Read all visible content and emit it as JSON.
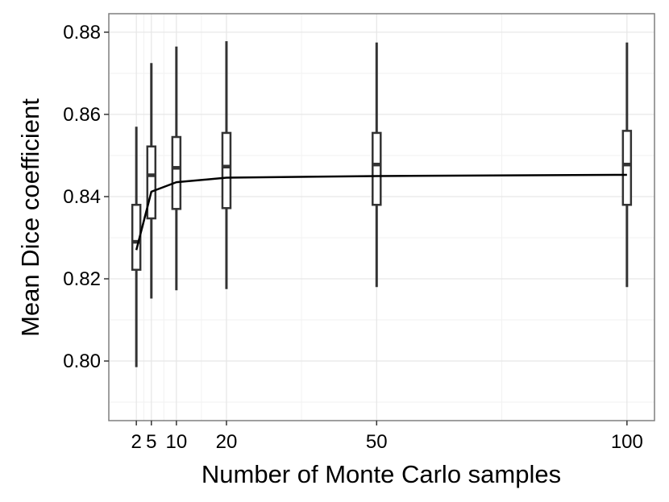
{
  "chart_data": {
    "type": "boxplot",
    "xlabel": "Number of Monte Carlo samples",
    "ylabel": "Mean Dice coefficient",
    "x_ticks": [
      2,
      5,
      10,
      20,
      50,
      100
    ],
    "x_tick_labels": [
      "2",
      "5",
      "10",
      "20",
      "50",
      "100"
    ],
    "y_ticks": [
      0.8,
      0.82,
      0.84,
      0.86,
      0.88
    ],
    "y_tick_labels": [
      "0.80",
      "0.82",
      "0.84",
      "0.86",
      "0.88"
    ],
    "xlim": [
      -3.5,
      105.5
    ],
    "ylim": [
      0.7855,
      0.8845
    ],
    "grid": true,
    "boxes": [
      {
        "x": 2,
        "whisker_low": 0.7985,
        "q1": 0.8222,
        "median": 0.829,
        "q3": 0.838,
        "whisker_high": 0.857
      },
      {
        "x": 5,
        "whisker_low": 0.8152,
        "q1": 0.8347,
        "median": 0.8452,
        "q3": 0.8522,
        "whisker_high": 0.8725
      },
      {
        "x": 10,
        "whisker_low": 0.8172,
        "q1": 0.837,
        "median": 0.847,
        "q3": 0.8545,
        "whisker_high": 0.8765
      },
      {
        "x": 20,
        "whisker_low": 0.8175,
        "q1": 0.8372,
        "median": 0.8473,
        "q3": 0.8555,
        "whisker_high": 0.8778
      },
      {
        "x": 50,
        "whisker_low": 0.818,
        "q1": 0.838,
        "median": 0.8478,
        "q3": 0.8555,
        "whisker_high": 0.8775
      },
      {
        "x": 100,
        "whisker_low": 0.818,
        "q1": 0.838,
        "median": 0.8478,
        "q3": 0.856,
        "whisker_high": 0.8775
      }
    ],
    "mean_line": {
      "x": [
        2,
        5,
        10,
        20,
        50,
        100
      ],
      "y": [
        0.827,
        0.8412,
        0.8435,
        0.8446,
        0.845,
        0.8453
      ]
    },
    "colors": {
      "background": "#ffffff",
      "panel_border": "#7f7f7f",
      "grid_major": "#e6e6e6",
      "grid_minor": "#f2f2f2",
      "box": "#333333",
      "line": "#000000",
      "tick": "#333333"
    }
  }
}
